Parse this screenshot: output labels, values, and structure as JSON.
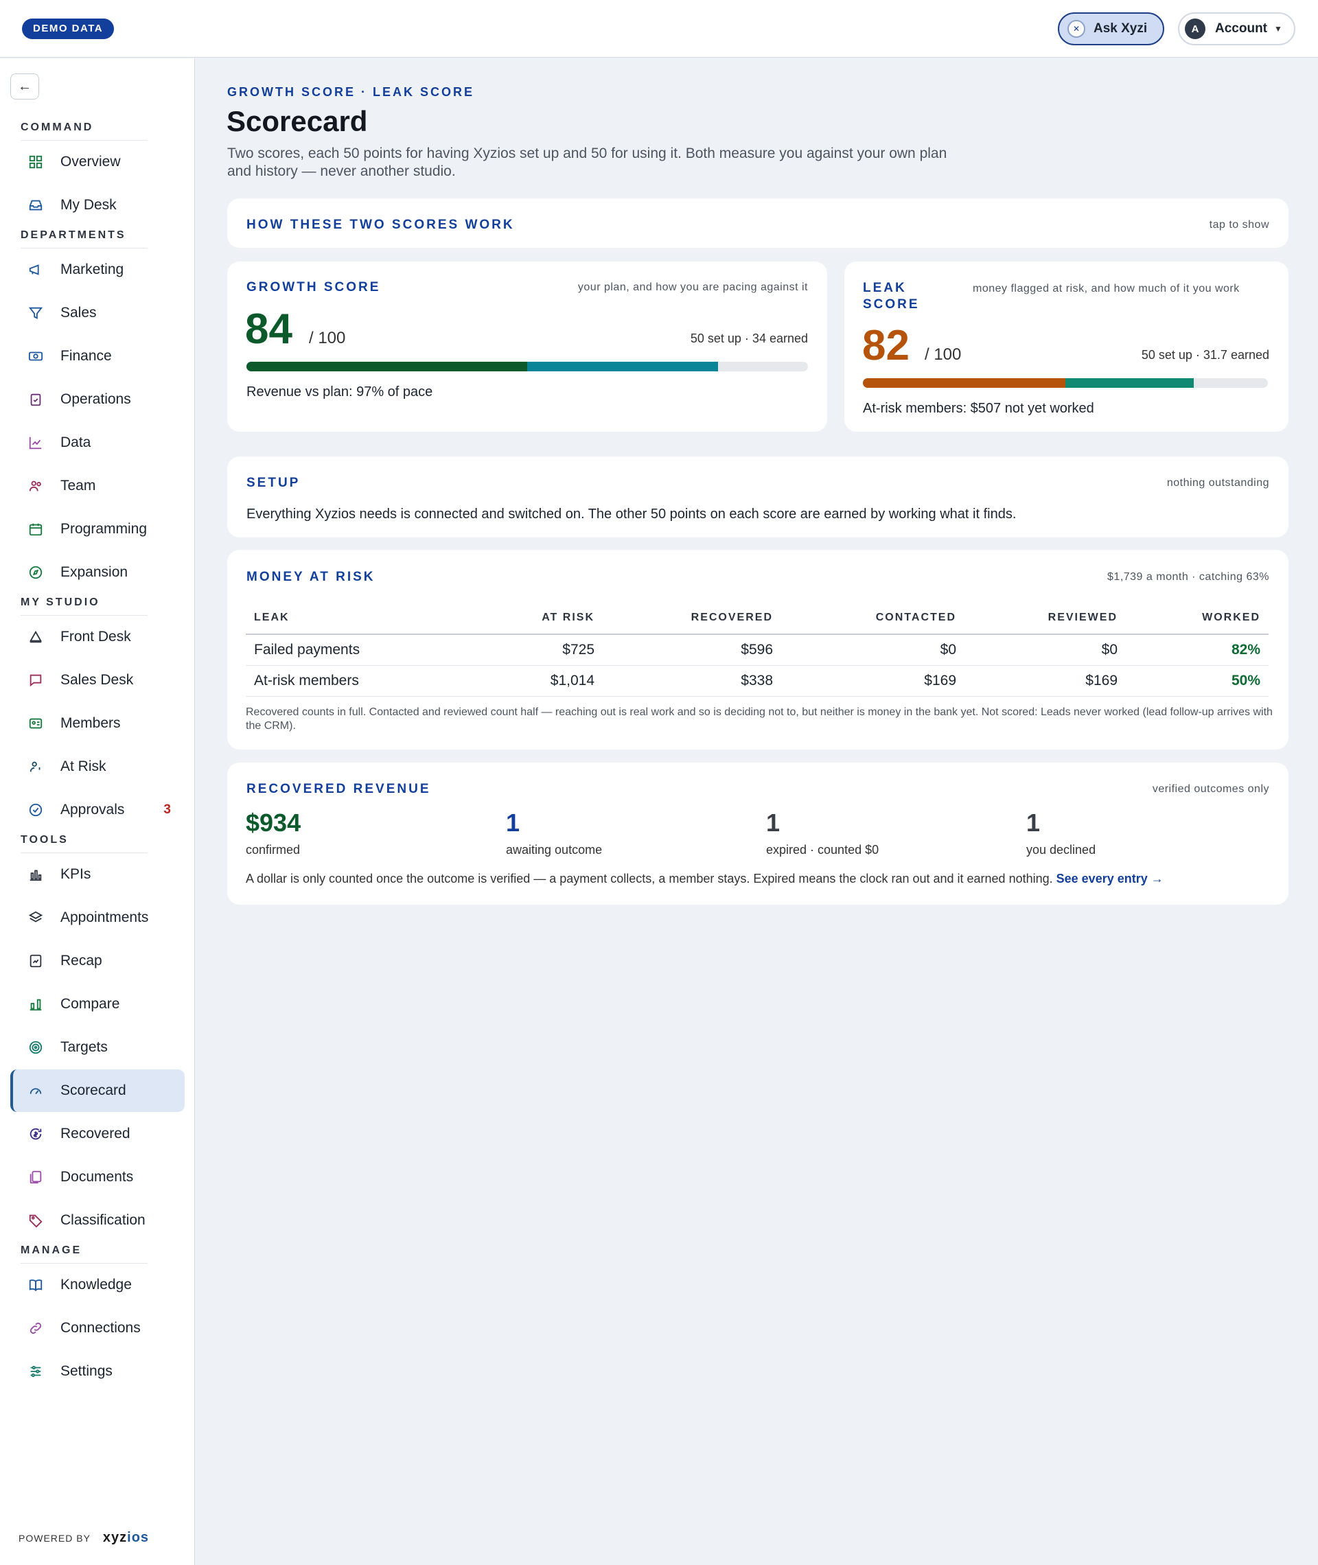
{
  "topbar": {
    "demo_badge": "DEMO DATA",
    "ask_label": "Ask Xyzi",
    "ask_icon_glyph": "✕",
    "account_label": "Account",
    "account_avatar": "A"
  },
  "sidebar": {
    "sections": [
      {
        "label": "COMMAND",
        "items": [
          {
            "label": "Overview",
            "icon": "grid-icon"
          },
          {
            "label": "My Desk",
            "icon": "inbox-icon"
          }
        ]
      },
      {
        "label": "DEPARTMENTS",
        "items": [
          {
            "label": "Marketing",
            "icon": "megaphone-icon"
          },
          {
            "label": "Sales",
            "icon": "funnel-icon"
          },
          {
            "label": "Finance",
            "icon": "banknote-icon"
          },
          {
            "label": "Operations",
            "icon": "clipboard-check-icon"
          },
          {
            "label": "Data",
            "icon": "line-chart-icon"
          },
          {
            "label": "Team",
            "icon": "users-icon"
          },
          {
            "label": "Programming",
            "icon": "calendar-icon"
          },
          {
            "label": "Expansion",
            "icon": "compass-icon"
          }
        ]
      },
      {
        "label": "MY STUDIO",
        "items": [
          {
            "label": "Front Desk",
            "icon": "bell-icon"
          },
          {
            "label": "Sales Desk",
            "icon": "message-icon"
          },
          {
            "label": "Members",
            "icon": "id-card-icon"
          },
          {
            "label": "At Risk",
            "icon": "user-alert-icon"
          },
          {
            "label": "Approvals",
            "icon": "check-circle-icon",
            "badge": "3"
          }
        ]
      },
      {
        "label": "TOOLS",
        "items": [
          {
            "label": "KPIs",
            "icon": "bar-chart-icon"
          },
          {
            "label": "Appointments",
            "icon": "layers-icon"
          },
          {
            "label": "Recap",
            "icon": "report-icon"
          },
          {
            "label": "Compare",
            "icon": "compare-bars-icon"
          },
          {
            "label": "Targets",
            "icon": "target-icon"
          },
          {
            "label": "Scorecard",
            "icon": "gauge-icon",
            "active": true
          },
          {
            "label": "Recovered",
            "icon": "dollar-refresh-icon"
          },
          {
            "label": "Documents",
            "icon": "documents-icon"
          },
          {
            "label": "Classification",
            "icon": "tag-icon"
          }
        ]
      },
      {
        "label": "MANAGE",
        "items": [
          {
            "label": "Knowledge",
            "icon": "book-icon"
          },
          {
            "label": "Connections",
            "icon": "link-icon"
          },
          {
            "label": "Settings",
            "icon": "sliders-icon"
          }
        ]
      }
    ],
    "powered_by": "POWERED BY",
    "brand_left": "xyz",
    "brand_right": "ios"
  },
  "page": {
    "breadcrumb": "GROWTH SCORE · LEAK SCORE",
    "title": "Scorecard",
    "subtitle": "Two scores, each 50 points for having Xyzios set up and 50 for using it. Both measure you against your own plan and history — never another studio."
  },
  "how": {
    "title": "HOW THESE TWO SCORES WORK",
    "toggle": "tap to show"
  },
  "growth": {
    "title": "GROWTH SCORE",
    "note": "your plan, and how you are pacing against it",
    "score": "84",
    "of": "/ 100",
    "earned": "50 set up · 34 earned",
    "setup_points": 50,
    "earned_points": 34,
    "line": "Revenue vs plan: 97% of pace",
    "color_primary": "#0c5a2c",
    "color_secondary": "#0a8597"
  },
  "leak": {
    "title": "LEAK SCORE",
    "note": "money flagged at risk, and how much of it you work",
    "score": "82",
    "of": "/ 100",
    "earned": "50 set up · 31.7 earned",
    "setup_points": 50,
    "earned_points": 31.7,
    "line": "At-risk members: $507 not yet worked",
    "color_primary": "#b5530a",
    "color_secondary": "#108a72"
  },
  "setup": {
    "title": "SETUP",
    "note": "nothing outstanding",
    "text": "Everything Xyzios needs is connected and switched on. The other 50 points on each score are earned by working what it finds."
  },
  "risk": {
    "title": "MONEY AT RISK",
    "note": "$1,739 a month · catching 63%",
    "columns": [
      "LEAK",
      "AT RISK",
      "RECOVERED",
      "CONTACTED",
      "REVIEWED",
      "WORKED"
    ],
    "rows": [
      [
        "Failed payments",
        "$725",
        "$596",
        "$0",
        "$0",
        "82%"
      ],
      [
        "At-risk members",
        "$1,014",
        "$338",
        "$169",
        "$169",
        "50%"
      ]
    ],
    "footnote": "Recovered counts in full. Contacted and reviewed count half — reaching out is real work and so is deciding not to, but neither is money in the bank yet. Not scored: Leads never worked (lead follow-up arrives with the CRM)."
  },
  "recovered": {
    "title": "RECOVERED REVENUE",
    "note": "verified outcomes only",
    "stats": [
      {
        "value": "$934",
        "label": "confirmed",
        "color": "#0c5a2c"
      },
      {
        "value": "1",
        "label": "awaiting outcome",
        "color": "#123f9c"
      },
      {
        "value": "1",
        "label": "expired · counted $0",
        "color": "#3a3f47"
      },
      {
        "value": "1",
        "label": "you declined",
        "color": "#3a3f47"
      }
    ],
    "footer": "A dollar is only counted once the outcome is verified — a payment collects, a member stays. Expired means the clock ran out and it earned nothing.",
    "link": "See every entry →"
  }
}
